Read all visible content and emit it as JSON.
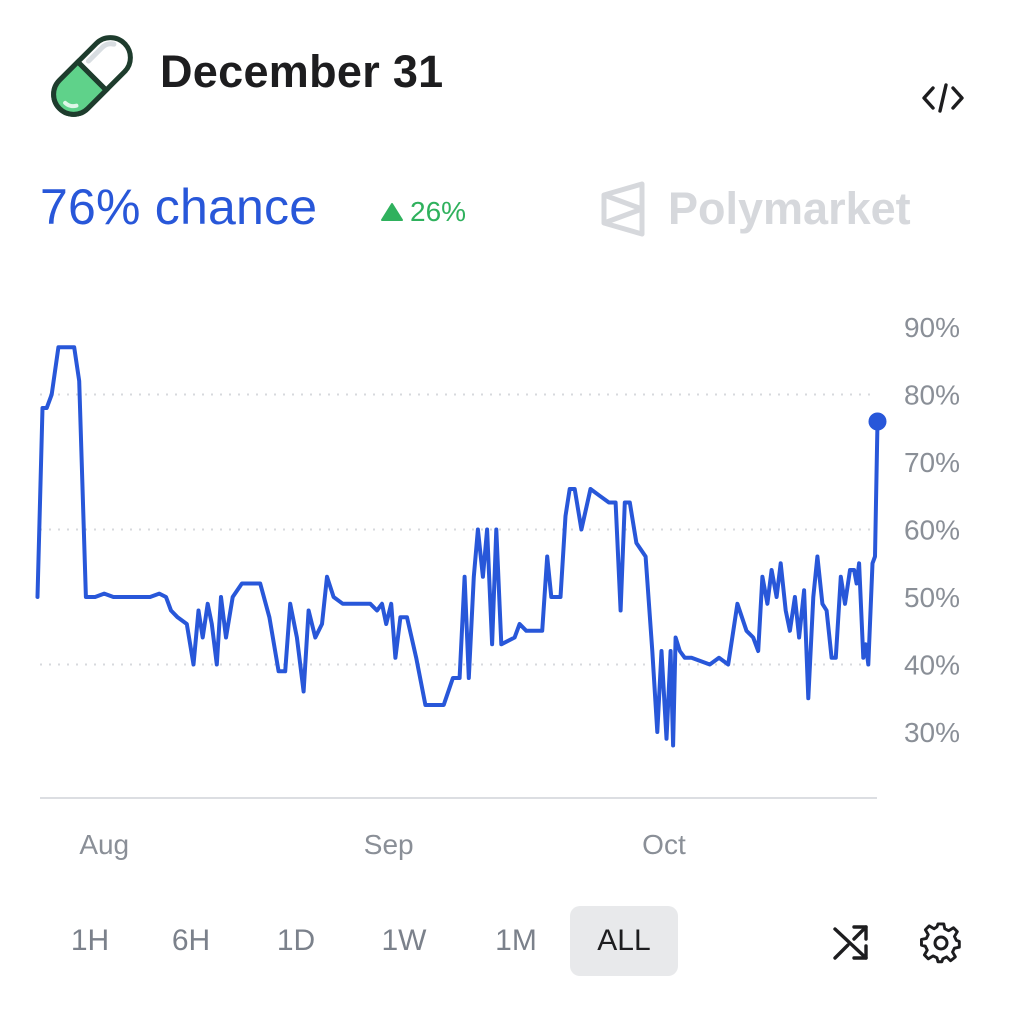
{
  "header": {
    "title": "December 31",
    "icon": "pill-icon",
    "embed_icon": "code-icon"
  },
  "summary": {
    "chance": "76% chance",
    "change": "26%",
    "change_direction": "up",
    "brand": "Polymarket"
  },
  "colors": {
    "line": "#2857d9",
    "up": "#2fb15d",
    "grid": "#d7d9dd",
    "axis_text": "#8a8f97"
  },
  "chart_data": {
    "type": "line",
    "title": "",
    "xlabel": "",
    "ylabel": "",
    "ylim": [
      20,
      92
    ],
    "y_ticks": [
      "90%",
      "80%",
      "70%",
      "60%",
      "50%",
      "40%",
      "30%"
    ],
    "y_tick_values": [
      90,
      80,
      70,
      60,
      50,
      40,
      30
    ],
    "gridlines": [
      80,
      60,
      40
    ],
    "x_ticks": [
      {
        "label": "Aug",
        "date": "2024-08-01"
      },
      {
        "label": "Sep",
        "date": "2024-09-01"
      },
      {
        "label": "Oct",
        "date": "2024-10-01"
      }
    ],
    "xlim": [
      "2024-07-25",
      "2024-10-24"
    ],
    "series": [
      {
        "marker_last": true,
        "points": [
          [
            "2024-07-25",
            50
          ],
          [
            "2024-07-25",
            78
          ],
          [
            "2024-07-26",
            78
          ],
          [
            "2024-07-26",
            80
          ],
          [
            "2024-07-27",
            87
          ],
          [
            "2024-07-28",
            87
          ],
          [
            "2024-07-29",
            87
          ],
          [
            "2024-07-29",
            82
          ],
          [
            "2024-07-30",
            50
          ],
          [
            "2024-07-31",
            50
          ],
          [
            "2024-08-01",
            50.5
          ],
          [
            "2024-08-02",
            50
          ],
          [
            "2024-08-03",
            50
          ],
          [
            "2024-08-06",
            50
          ],
          [
            "2024-08-07",
            50.5
          ],
          [
            "2024-08-08",
            50
          ],
          [
            "2024-08-08",
            48
          ],
          [
            "2024-08-09",
            47
          ],
          [
            "2024-08-10",
            46
          ],
          [
            "2024-08-11",
            40
          ],
          [
            "2024-08-11",
            48
          ],
          [
            "2024-08-12",
            44
          ],
          [
            "2024-08-12",
            49
          ],
          [
            "2024-08-13",
            46
          ],
          [
            "2024-08-13",
            40
          ],
          [
            "2024-08-14",
            50
          ],
          [
            "2024-08-14",
            44
          ],
          [
            "2024-08-15",
            50
          ],
          [
            "2024-08-16",
            52
          ],
          [
            "2024-08-17",
            52
          ],
          [
            "2024-08-18",
            52
          ],
          [
            "2024-08-19",
            47
          ],
          [
            "2024-08-20",
            39
          ],
          [
            "2024-08-21",
            39
          ],
          [
            "2024-08-21",
            49
          ],
          [
            "2024-08-22",
            44
          ],
          [
            "2024-08-23",
            36
          ],
          [
            "2024-08-23",
            48
          ],
          [
            "2024-08-24",
            44
          ],
          [
            "2024-08-25",
            46
          ],
          [
            "2024-08-25",
            53
          ],
          [
            "2024-08-26",
            50
          ],
          [
            "2024-08-27",
            49
          ],
          [
            "2024-08-30",
            49
          ],
          [
            "2024-08-31",
            48
          ],
          [
            "2024-08-31",
            49
          ],
          [
            "2024-09-01",
            46
          ],
          [
            "2024-09-01",
            49
          ],
          [
            "2024-09-02",
            41
          ],
          [
            "2024-09-02",
            47
          ],
          [
            "2024-09-03",
            47
          ],
          [
            "2024-09-04",
            41
          ],
          [
            "2024-09-05",
            34
          ],
          [
            "2024-09-07",
            34
          ],
          [
            "2024-09-08",
            38
          ],
          [
            "2024-09-09",
            38
          ],
          [
            "2024-09-09",
            53
          ],
          [
            "2024-09-10",
            38
          ],
          [
            "2024-09-10",
            53
          ],
          [
            "2024-09-11",
            60
          ],
          [
            "2024-09-11",
            53
          ],
          [
            "2024-09-12",
            60
          ],
          [
            "2024-09-12",
            43
          ],
          [
            "2024-09-13",
            60
          ],
          [
            "2024-09-13",
            43
          ],
          [
            "2024-09-15",
            44
          ],
          [
            "2024-09-15",
            46
          ],
          [
            "2024-09-16",
            45
          ],
          [
            "2024-09-18",
            45
          ],
          [
            "2024-09-18",
            56
          ],
          [
            "2024-09-19",
            50
          ],
          [
            "2024-09-19",
            50
          ],
          [
            "2024-09-20",
            50
          ],
          [
            "2024-09-20",
            62
          ],
          [
            "2024-09-21",
            66
          ],
          [
            "2024-09-21",
            66
          ],
          [
            "2024-09-22",
            60
          ],
          [
            "2024-09-23",
            66
          ],
          [
            "2024-09-24",
            65
          ],
          [
            "2024-09-25",
            64
          ],
          [
            "2024-09-26",
            64
          ],
          [
            "2024-09-26",
            48
          ],
          [
            "2024-09-27",
            64
          ],
          [
            "2024-09-27",
            64
          ],
          [
            "2024-09-28",
            58
          ],
          [
            "2024-09-29",
            56
          ],
          [
            "2024-09-30",
            42
          ],
          [
            "2024-09-30",
            30
          ],
          [
            "2024-10-01",
            42
          ],
          [
            "2024-10-01",
            29
          ],
          [
            "2024-10-02",
            42
          ],
          [
            "2024-10-02",
            28
          ],
          [
            "2024-10-02",
            44
          ],
          [
            "2024-10-03",
            42
          ],
          [
            "2024-10-03",
            41
          ],
          [
            "2024-10-04",
            41
          ],
          [
            "2024-10-06",
            40
          ],
          [
            "2024-10-07",
            41
          ],
          [
            "2024-10-08",
            40
          ],
          [
            "2024-10-09",
            49
          ],
          [
            "2024-10-10",
            45
          ],
          [
            "2024-10-11",
            44
          ],
          [
            "2024-10-11",
            42
          ],
          [
            "2024-10-12",
            53
          ],
          [
            "2024-10-12",
            49
          ],
          [
            "2024-10-13",
            54
          ],
          [
            "2024-10-13",
            50
          ],
          [
            "2024-10-14",
            55
          ],
          [
            "2024-10-14",
            48
          ],
          [
            "2024-10-15",
            45
          ],
          [
            "2024-10-15",
            50
          ],
          [
            "2024-10-16",
            44
          ],
          [
            "2024-10-16",
            51
          ],
          [
            "2024-10-17",
            35
          ],
          [
            "2024-10-17",
            50
          ],
          [
            "2024-10-18",
            56
          ],
          [
            "2024-10-18",
            49
          ],
          [
            "2024-10-19",
            48
          ],
          [
            "2024-10-19",
            41
          ],
          [
            "2024-10-20",
            41
          ],
          [
            "2024-10-20",
            53
          ],
          [
            "2024-10-21",
            49
          ],
          [
            "2024-10-21",
            54
          ],
          [
            "2024-10-22",
            54
          ],
          [
            "2024-10-22",
            52
          ],
          [
            "2024-10-22",
            55
          ],
          [
            "2024-10-23",
            41
          ],
          [
            "2024-10-23",
            43
          ],
          [
            "2024-10-23",
            40
          ],
          [
            "2024-10-24",
            55
          ],
          [
            "2024-10-24",
            56
          ],
          [
            "2024-10-24",
            76
          ]
        ]
      }
    ]
  },
  "ranges": {
    "items": [
      "1H",
      "6H",
      "1D",
      "1W",
      "1M",
      "ALL"
    ],
    "active": "ALL"
  },
  "toolbar": {
    "shuffle_icon": "shuffle-icon",
    "settings_icon": "gear-icon"
  }
}
